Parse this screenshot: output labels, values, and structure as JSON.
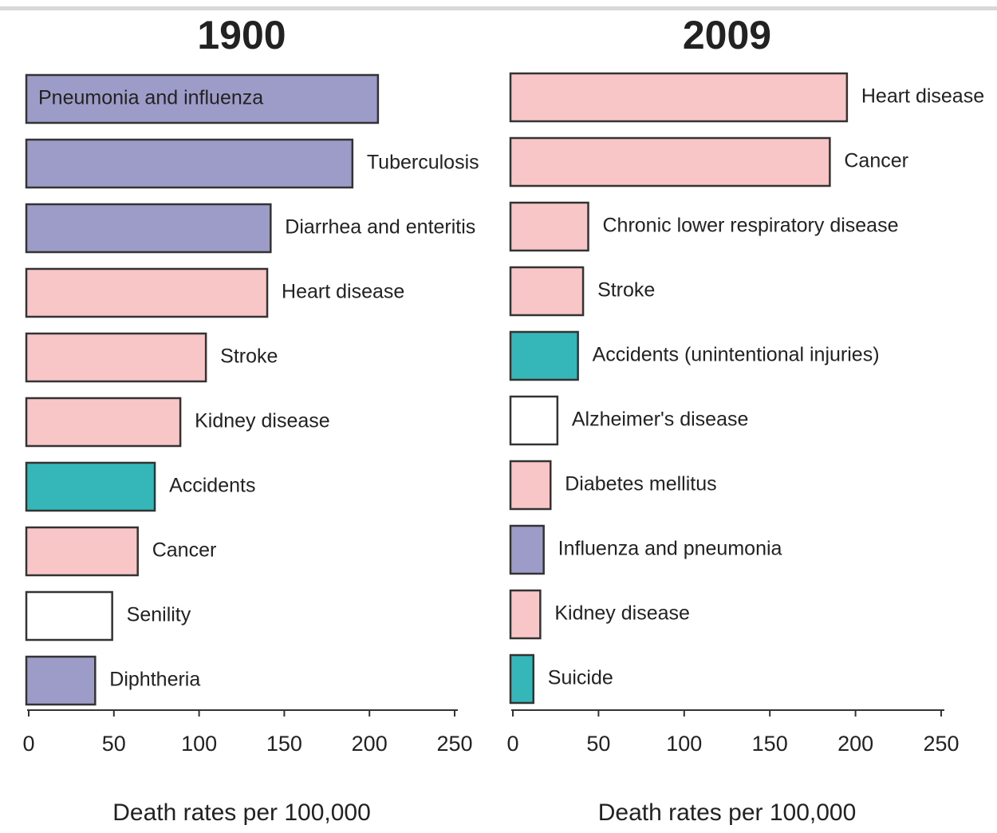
{
  "chart_data": [
    {
      "type": "bar",
      "orientation": "horizontal",
      "title": "1900",
      "categories": [
        "Pneumonia and influenza",
        "Tuberculosis",
        "Diarrhea and enteritis",
        "Heart disease",
        "Stroke",
        "Kidney disease",
        "Accidents",
        "Cancer",
        "Senility",
        "Diphtheria"
      ],
      "values": [
        205,
        190,
        142,
        140,
        104,
        89,
        74,
        64,
        49,
        39
      ],
      "colors": [
        "#9d9cc9",
        "#9d9cc9",
        "#9d9cc9",
        "#f8c6c6",
        "#f8c6c6",
        "#f8c6c6",
        "#35b6b8",
        "#f8c6c6",
        "#ffffff",
        "#9d9cc9"
      ],
      "xlim": [
        0,
        250
      ],
      "xticks": [
        0,
        50,
        100,
        150,
        200,
        250
      ],
      "x_label": "Death rates per 100,000"
    },
    {
      "type": "bar",
      "orientation": "horizontal",
      "title": "2009",
      "categories": [
        "Heart disease",
        "Cancer",
        "Chronic lower respiratory disease",
        "Stroke",
        "Accidents (unintentional injuries)",
        "Alzheimer's disease",
        "Diabetes mellitus",
        "Influenza and pneumonia",
        "Kidney disease",
        "Suicide"
      ],
      "values": [
        195,
        185,
        44,
        41,
        38,
        26,
        22,
        18,
        16,
        12
      ],
      "colors": [
        "#f8c6c6",
        "#f8c6c6",
        "#f8c6c6",
        "#f8c6c6",
        "#35b6b8",
        "#ffffff",
        "#f8c6c6",
        "#9d9cc9",
        "#f8c6c6",
        "#35b6b8"
      ],
      "xlim": [
        0,
        250
      ],
      "xticks": [
        0,
        50,
        100,
        150,
        200,
        250
      ],
      "x_label": "Death rates per 100,000"
    }
  ]
}
